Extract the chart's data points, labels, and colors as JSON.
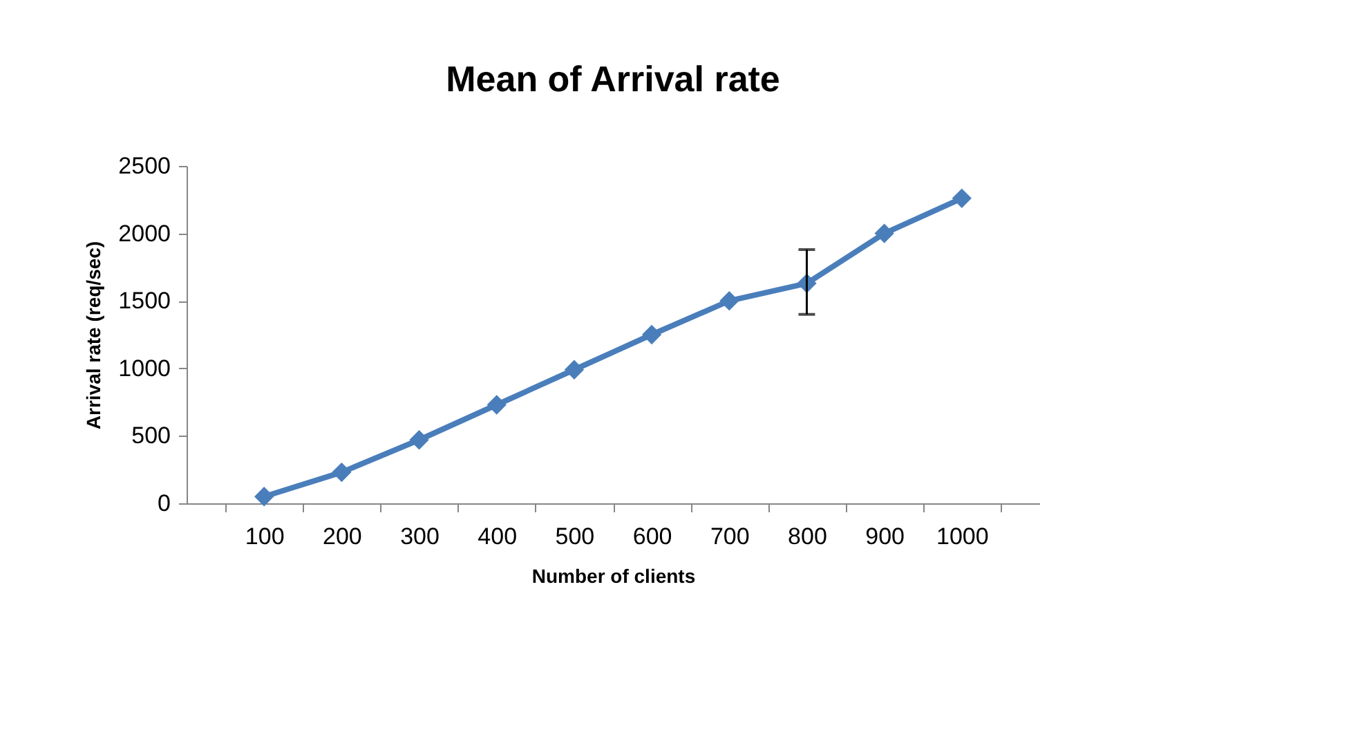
{
  "chart_data": {
    "type": "line",
    "title": "Mean of Arrival rate",
    "xlabel": "Number of clients",
    "ylabel": "Arrival rate (req/sec)",
    "categories": [
      "100",
      "200",
      "300",
      "400",
      "500",
      "600",
      "700",
      "800",
      "900",
      "1000"
    ],
    "series": [
      {
        "color": "#4a7ebb",
        "values": [
          50,
          230,
          470,
          730,
          990,
          1250,
          1500,
          1630,
          2000,
          2260
        ],
        "errors": [
          null,
          null,
          null,
          null,
          null,
          null,
          null,
          [
            1400,
            1880
          ],
          null,
          null
        ]
      }
    ],
    "ylim": [
      0,
      2500
    ],
    "yticks": [
      0,
      500,
      1000,
      1500,
      2000,
      2500
    ],
    "grid": false,
    "marker": "diamond",
    "line_style": "solid"
  }
}
